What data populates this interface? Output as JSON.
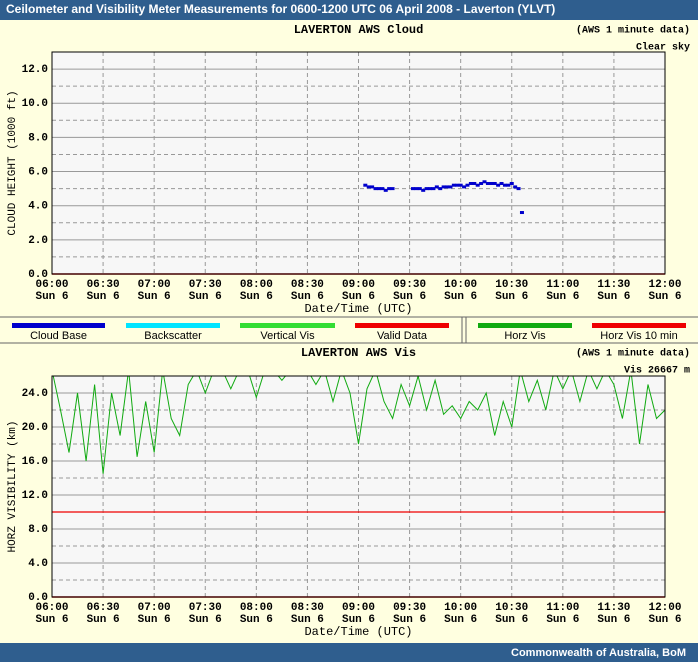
{
  "header": {
    "title": "Ceilometer and Visibility Meter Measurements for 0600-1200 UTC  06 April 2008 - Laverton (YLVT)"
  },
  "footer": "Commonwealth of  Australia, BoM",
  "legend": [
    {
      "name": "Cloud Base",
      "color": "#0000cc"
    },
    {
      "name": "Backscatter",
      "color": "#00e5ff"
    },
    {
      "name": "Vertical Vis",
      "color": "#33dd33"
    },
    {
      "name": "Valid Data",
      "color": "#ee0000"
    },
    {
      "name": "Horz Vis",
      "color": "#11aa11"
    },
    {
      "name": "Horz Vis 10 min",
      "color": "#ee0000"
    }
  ],
  "chart_data": [
    {
      "type": "scatter",
      "title": "LAVERTON AWS Cloud",
      "note": "(AWS 1 minute data)",
      "status": "Clear sky",
      "x_label": "Date/Time (UTC)",
      "y_label": "CLOUD HEIGHT (1000 ft)",
      "xlim": [
        "06:00",
        "12:00"
      ],
      "xticks": [
        "06:00",
        "06:30",
        "07:00",
        "07:30",
        "08:00",
        "08:30",
        "09:00",
        "09:30",
        "10:00",
        "10:30",
        "11:00",
        "11:30",
        "12:00"
      ],
      "xtick_days": [
        "Sun 6",
        "Sun 6",
        "Sun 6",
        "Sun 6",
        "Sun 6",
        "Sun 6",
        "Sun 6",
        "Sun 6",
        "Sun 6",
        "Sun 6",
        "Sun 6",
        "Sun 6",
        "Sun 6"
      ],
      "ylim": [
        0,
        13
      ],
      "yticks": [
        {
          "value": 0,
          "label": "0.0"
        },
        {
          "value": 2,
          "label": "2.0"
        },
        {
          "value": 4,
          "label": "4.0"
        },
        {
          "value": 6,
          "label": "6.0"
        },
        {
          "value": 8,
          "label": "8.0"
        },
        {
          "value": 10,
          "label": "10.0"
        },
        {
          "value": 12,
          "label": "12.0"
        }
      ],
      "y_minor_ticks": [
        1,
        3,
        5,
        7,
        9,
        11
      ],
      "color": "#0000cc",
      "x": [
        "09:04",
        "09:06",
        "09:08",
        "09:10",
        "09:12",
        "09:14",
        "09:16",
        "09:18",
        "09:20",
        "09:32",
        "09:34",
        "09:36",
        "09:38",
        "09:40",
        "09:42",
        "09:44",
        "09:46",
        "09:48",
        "09:50",
        "09:52",
        "09:54",
        "09:56",
        "09:58",
        "10:00",
        "10:02",
        "10:04",
        "10:06",
        "10:08",
        "10:10",
        "10:12",
        "10:14",
        "10:16",
        "10:18",
        "10:20",
        "10:22",
        "10:24",
        "10:26",
        "10:28",
        "10:30",
        "10:32",
        "10:34",
        "10:36"
      ],
      "values": [
        5.2,
        5.1,
        5.1,
        5.0,
        5.0,
        5.0,
        4.9,
        5.0,
        5.0,
        5.0,
        5.0,
        5.0,
        4.9,
        5.0,
        5.0,
        5.0,
        5.1,
        5.0,
        5.1,
        5.1,
        5.1,
        5.2,
        5.2,
        5.2,
        5.1,
        5.2,
        5.3,
        5.3,
        5.2,
        5.3,
        5.4,
        5.3,
        5.3,
        5.3,
        5.2,
        5.3,
        5.2,
        5.2,
        5.3,
        5.1,
        5.0,
        3.6
      ]
    },
    {
      "type": "line",
      "title": "LAVERTON AWS Vis",
      "note": "(AWS 1 minute data)",
      "status": "Vis 26667 m",
      "x_label": "Date/Time (UTC)",
      "y_label": "HORZ VISIBILITY (km)",
      "xlim": [
        "06:00",
        "12:00"
      ],
      "xticks": [
        "06:00",
        "06:30",
        "07:00",
        "07:30",
        "08:00",
        "08:30",
        "09:00",
        "09:30",
        "10:00",
        "10:30",
        "11:00",
        "11:30",
        "12:00"
      ],
      "xtick_days": [
        "Sun 6",
        "Sun 6",
        "Sun 6",
        "Sun 6",
        "Sun 6",
        "Sun 6",
        "Sun 6",
        "Sun 6",
        "Sun 6",
        "Sun 6",
        "Sun 6",
        "Sun 6",
        "Sun 6"
      ],
      "ylim": [
        0,
        26
      ],
      "yticks": [
        {
          "value": 0,
          "label": "0.0"
        },
        {
          "value": 4,
          "label": "4.0"
        },
        {
          "value": 8,
          "label": "8.0"
        },
        {
          "value": 12,
          "label": "12.0"
        },
        {
          "value": 16,
          "label": "16.0"
        },
        {
          "value": 20,
          "label": "20.0"
        },
        {
          "value": 24,
          "label": "24.0"
        }
      ],
      "y_minor_ticks": [
        2,
        6,
        10,
        14,
        18,
        22
      ],
      "reference_line": 10,
      "reference_color": "#ee0000",
      "color": "#11aa11",
      "x": [
        "06:00",
        "06:05",
        "06:10",
        "06:15",
        "06:20",
        "06:25",
        "06:30",
        "06:35",
        "06:40",
        "06:45",
        "06:50",
        "06:55",
        "07:00",
        "07:05",
        "07:10",
        "07:15",
        "07:20",
        "07:25",
        "07:30",
        "07:35",
        "07:40",
        "07:45",
        "07:50",
        "07:55",
        "08:00",
        "08:05",
        "08:10",
        "08:15",
        "08:20",
        "08:25",
        "08:30",
        "08:35",
        "08:40",
        "08:45",
        "08:50",
        "08:55",
        "09:00",
        "09:05",
        "09:10",
        "09:15",
        "09:20",
        "09:25",
        "09:30",
        "09:35",
        "09:40",
        "09:45",
        "09:50",
        "09:55",
        "10:00",
        "10:05",
        "10:10",
        "10:15",
        "10:20",
        "10:25",
        "10:30",
        "10:35",
        "10:40",
        "10:45",
        "10:50",
        "10:55",
        "11:00",
        "11:05",
        "11:10",
        "11:15",
        "11:20",
        "11:25",
        "11:30",
        "11:35",
        "11:40",
        "11:45",
        "11:50",
        "11:55",
        "12:00"
      ],
      "values": [
        26.7,
        22,
        17,
        24,
        16,
        25,
        14.5,
        24,
        19,
        26.7,
        16.5,
        23,
        17,
        26.7,
        21,
        19,
        25,
        26.7,
        24,
        26.7,
        26.7,
        24.5,
        26.7,
        26.7,
        23.5,
        26.7,
        26.7,
        25.5,
        26.7,
        26.7,
        26.7,
        25,
        26.7,
        23,
        26.7,
        24,
        18,
        24.5,
        26.7,
        23,
        21,
        25,
        22.5,
        26,
        22,
        25.5,
        21.5,
        22.5,
        21,
        23,
        22,
        24,
        19,
        23,
        20,
        26.7,
        23,
        25.5,
        22,
        26.7,
        24.5,
        26.7,
        23,
        26.7,
        24.5,
        26.7,
        25,
        21,
        26.7,
        18,
        25,
        21,
        22
      ]
    }
  ]
}
